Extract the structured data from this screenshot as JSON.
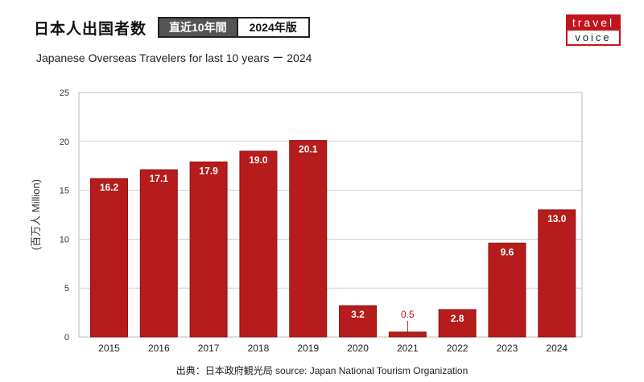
{
  "header": {
    "title": "日本人出国者数",
    "badge_period": "直近10年間",
    "badge_edition": "2024年版",
    "subtitle": "Japanese Overseas Travelers for last 10 years  ー  2024"
  },
  "logo": {
    "line1": "travel",
    "line2": "voice"
  },
  "source": "出典：日本政府観光局  source: Japan National Tourism Organization",
  "colors": {
    "bar": "#b71c1c",
    "bar_stroke": "#8e1414",
    "label_out": "#c0151c",
    "grid": "#d0d0d0"
  },
  "chart_data": {
    "type": "bar",
    "title": "Japanese Overseas Travelers for last 10 years  ー  2024",
    "xlabel": "",
    "ylabel": "(百万人 Million)",
    "categories": [
      "2015",
      "2016",
      "2017",
      "2018",
      "2019",
      "2020",
      "2021",
      "2022",
      "2023",
      "2024"
    ],
    "values": [
      16.2,
      17.1,
      17.9,
      19.0,
      20.1,
      3.2,
      0.5,
      2.8,
      9.6,
      13.0
    ],
    "value_labels": [
      "16.2",
      "17.1",
      "17.9",
      "19.0",
      "20.1",
      "3.2",
      "0.5",
      "2.8",
      "9.6",
      "13.0"
    ],
    "ylim": [
      0,
      25
    ],
    "yticks": [
      0,
      5,
      10,
      15,
      20,
      25
    ],
    "grid": true,
    "legend": "none"
  }
}
